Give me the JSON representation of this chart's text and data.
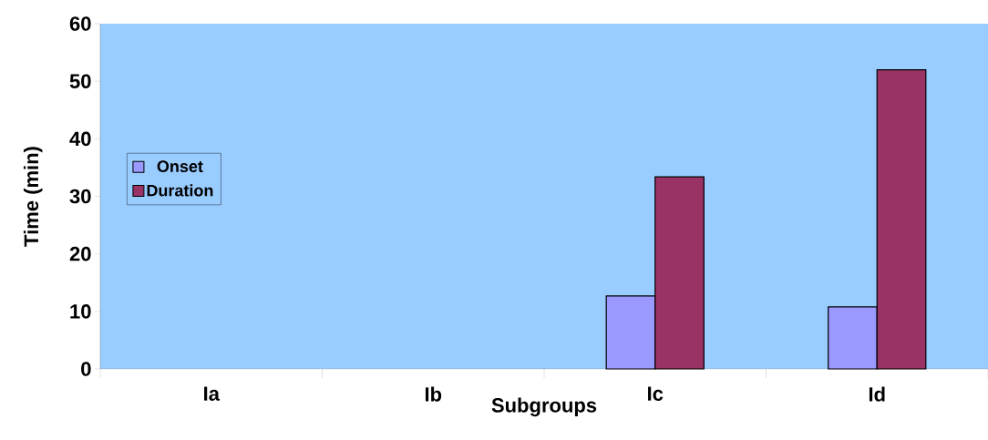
{
  "chart_data": {
    "type": "bar",
    "xlabel": "Subgroups",
    "ylabel": "Time (min)",
    "categories": [
      "Ia",
      "Ib",
      "Ic",
      "Id"
    ],
    "series": [
      {
        "name": "Onset",
        "color": "#9999ff",
        "values": [
          null,
          null,
          12.7,
          10.8
        ]
      },
      {
        "name": "Duration",
        "color": "#993366",
        "values": [
          null,
          null,
          33.4,
          52
        ]
      }
    ],
    "ylim": [
      0,
      60
    ],
    "yticks": [
      0,
      10,
      20,
      30,
      40,
      50,
      60
    ],
    "grid": false,
    "legend": "left"
  }
}
